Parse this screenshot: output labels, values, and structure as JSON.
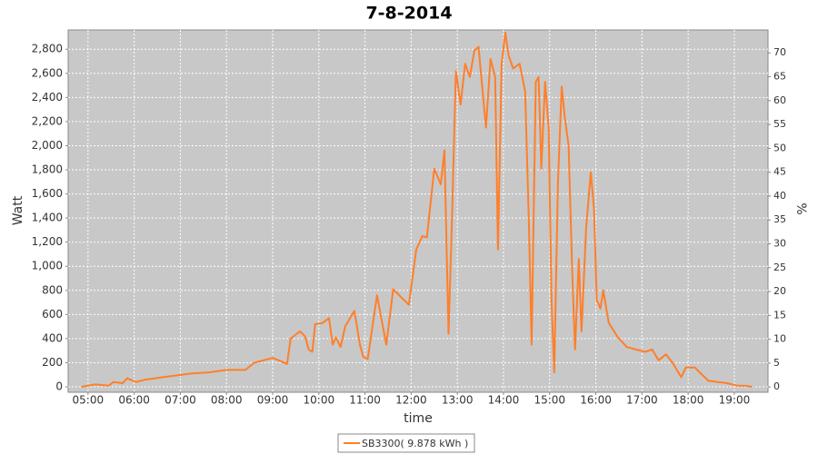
{
  "chart_data": {
    "type": "line",
    "title": "7-8-2014",
    "x_label": "time",
    "y_label": "Watt",
    "y2_label": "%",
    "xlim": [
      4.57,
      19.73
    ],
    "xticks": [
      {
        "value": 5,
        "label": "05:00"
      },
      {
        "value": 6,
        "label": "06:00"
      },
      {
        "value": 7,
        "label": "07:00"
      },
      {
        "value": 8,
        "label": "08:00"
      },
      {
        "value": 9,
        "label": "09:00"
      },
      {
        "value": 10,
        "label": "10:00"
      },
      {
        "value": 11,
        "label": "11:00"
      },
      {
        "value": 12,
        "label": "12:00"
      },
      {
        "value": 13,
        "label": "13:00"
      },
      {
        "value": 14,
        "label": "14:00"
      },
      {
        "value": 15,
        "label": "15:00"
      },
      {
        "value": 16,
        "label": "16:00"
      },
      {
        "value": 17,
        "label": "17:00"
      },
      {
        "value": 18,
        "label": "18:00"
      },
      {
        "value": 19,
        "label": "19:00"
      }
    ],
    "ylim": [
      -45,
      2960
    ],
    "yticks": [
      0,
      200,
      400,
      600,
      800,
      {
        "value": 1000,
        "label": "1,000"
      },
      {
        "value": 1200,
        "label": "1,200"
      },
      {
        "value": 1400,
        "label": "1,400"
      },
      {
        "value": 1600,
        "label": "1,600"
      },
      {
        "value": 1800,
        "label": "1,800"
      },
      {
        "value": 2000,
        "label": "2,000"
      },
      {
        "value": 2200,
        "label": "2,200"
      },
      {
        "value": 2400,
        "label": "2,400"
      },
      {
        "value": 2600,
        "label": "2,600"
      },
      {
        "value": 2800,
        "label": "2,800"
      }
    ],
    "y2lim": [
      -1.1,
      74.8
    ],
    "y2ticks": [
      0,
      5,
      10,
      15,
      20,
      25,
      30,
      35,
      40,
      45,
      50,
      55,
      60,
      65,
      70
    ],
    "grid": true,
    "legend": "bottom",
    "x": [
      4.86,
      5.16,
      5.45,
      5.55,
      5.75,
      5.85,
      6.04,
      6.24,
      6.63,
      7.03,
      7.22,
      7.62,
      8.01,
      8.41,
      8.6,
      9.0,
      9.19,
      9.31,
      9.39,
      9.59,
      9.7,
      9.78,
      9.86,
      9.92,
      10.08,
      10.22,
      10.3,
      10.37,
      10.47,
      10.57,
      10.77,
      10.89,
      10.96,
      11.06,
      11.26,
      11.46,
      11.61,
      11.95,
      12.11,
      12.24,
      12.34,
      12.5,
      12.64,
      12.72,
      12.81,
      12.89,
      12.97,
      13.07,
      13.17,
      13.27,
      13.37,
      13.46,
      13.62,
      13.72,
      13.82,
      13.88,
      13.96,
      14.04,
      14.11,
      14.21,
      14.35,
      14.47,
      14.55,
      14.61,
      14.7,
      14.76,
      14.82,
      14.9,
      14.98,
      15.04,
      15.1,
      15.18,
      15.26,
      15.33,
      15.41,
      15.49,
      15.55,
      15.63,
      15.69,
      15.79,
      15.89,
      15.96,
      16.02,
      16.1,
      16.16,
      16.28,
      16.48,
      16.67,
      16.87,
      17.07,
      17.22,
      17.36,
      17.52,
      17.66,
      17.85,
      17.95,
      18.15,
      18.25,
      18.44,
      18.84,
      19.07,
      19.23,
      19.39
    ],
    "series": [
      {
        "name": "SB3300( 9.878 kWh )",
        "color": "#ff7f2a",
        "values": [
          0,
          20,
          10,
          40,
          30,
          70,
          40,
          60,
          80,
          100,
          110,
          120,
          140,
          140,
          200,
          240,
          210,
          190,
          400,
          460,
          420,
          310,
          290,
          520,
          530,
          570,
          350,
          410,
          330,
          500,
          630,
          350,
          250,
          230,
          760,
          350,
          810,
          680,
          1140,
          1250,
          1240,
          1810,
          1680,
          1960,
          440,
          1480,
          2620,
          2340,
          2680,
          2570,
          2790,
          2820,
          2150,
          2720,
          2570,
          1140,
          2680,
          2940,
          2750,
          2640,
          2680,
          2450,
          1360,
          350,
          2530,
          2570,
          1810,
          2530,
          2150,
          720,
          120,
          1700,
          2490,
          2230,
          2000,
          950,
          310,
          1060,
          460,
          1320,
          1780,
          1480,
          720,
          650,
          800,
          530,
          410,
          330,
          310,
          290,
          310,
          220,
          270,
          200,
          80,
          160,
          160,
          120,
          50,
          30,
          10,
          10,
          0
        ]
      }
    ]
  }
}
